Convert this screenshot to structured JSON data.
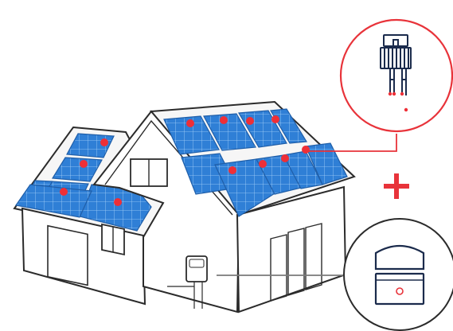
{
  "colors": {
    "outline": "#2b2b2b",
    "wall_fill": "#ffffff",
    "roof_fill": "#f6f6f6",
    "panel_fill": "#2f7fd6",
    "panel_light": "#6fb3f2",
    "panel_grid": "#a9d4fb",
    "optimizer_dot": "#ee2f37",
    "connector_red": "#e8333a",
    "connector_gray": "#7a7a7a",
    "icon_navy": "#1b2b4c",
    "plus_red": "#e8333a"
  },
  "icons": {
    "optimizer": "power-optimizer-icon",
    "inverter": "inverter-icon",
    "plus": "plus-icon"
  }
}
